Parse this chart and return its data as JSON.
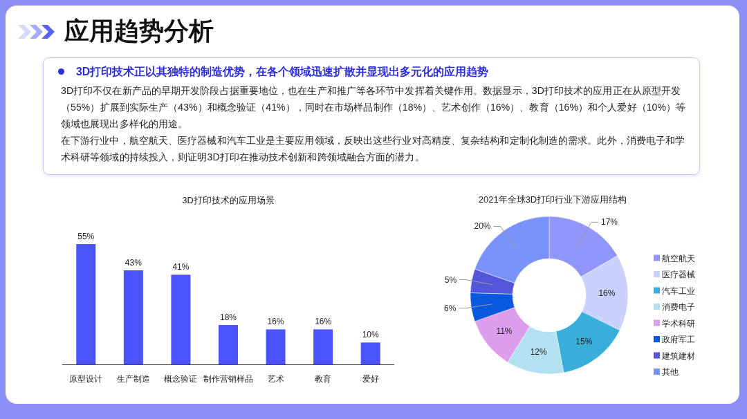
{
  "chart_data": [
    {
      "type": "other",
      "title": "应用趋势分析",
      "subtitle": "3D打印技术正以其独特的制造优势，在各个领域迅速扩散并显现出多元化的应用趋势",
      "annotations": [
        "3D打印不仅在新产品的早期开发阶段占据重要地位，也在生产和推广等各环节中发挥着关键作用。数据显示，3D打印技术的应用正在从原型开发（55%）扩展到实际生产（43%）和概念验证（41%），同时在市场样品制作（18%）、艺术创作（16%）、教育（16%）和个人爱好（10%）等领域也展现出多样化的用途。",
        "在下游行业中，航空航天、医疗器械和汽车工业是主要应用领域，反映出这些行业对高精度、复杂结构和定制化制造的需求。此外，消费电子和学术科研等领域的持续投入，则证明3D打印在推动技术创新和跨领域融合方面的潜力。"
      ]
    },
    {
      "type": "bar",
      "title": "3D打印技术的应用场景",
      "categories": [
        "原型设计",
        "生产制造",
        "概念验证",
        "制作营销样品",
        "艺术",
        "教育",
        "爱好"
      ],
      "values": [
        55,
        43,
        41,
        18,
        16,
        16,
        10
      ],
      "color": "#4b53fc",
      "value_labels": [
        "55%",
        "43%",
        "41%",
        "18%",
        "16%",
        "16%",
        "10%"
      ]
    },
    {
      "type": "donut",
      "title": "2021年全球3D打印行业下游应用结构",
      "categories": [
        "航空航天",
        "医疗器械",
        "汽车工业",
        "消费电子",
        "学术科研",
        "政府军工",
        "建筑建材",
        "其他"
      ],
      "values": [
        17,
        16,
        15,
        12,
        11,
        6,
        5,
        20
      ],
      "colors": [
        "#9096fb",
        "#c9d1fc",
        "#3aaedb",
        "#b3e1f1",
        "#dd9ded",
        "#0b58e0",
        "#5257d9",
        "#7a92fb"
      ],
      "value_labels": [
        "17%",
        "16%",
        "15%",
        "12%",
        "11%",
        "6%",
        "5%",
        "20%"
      ],
      "legend": "right"
    }
  ]
}
